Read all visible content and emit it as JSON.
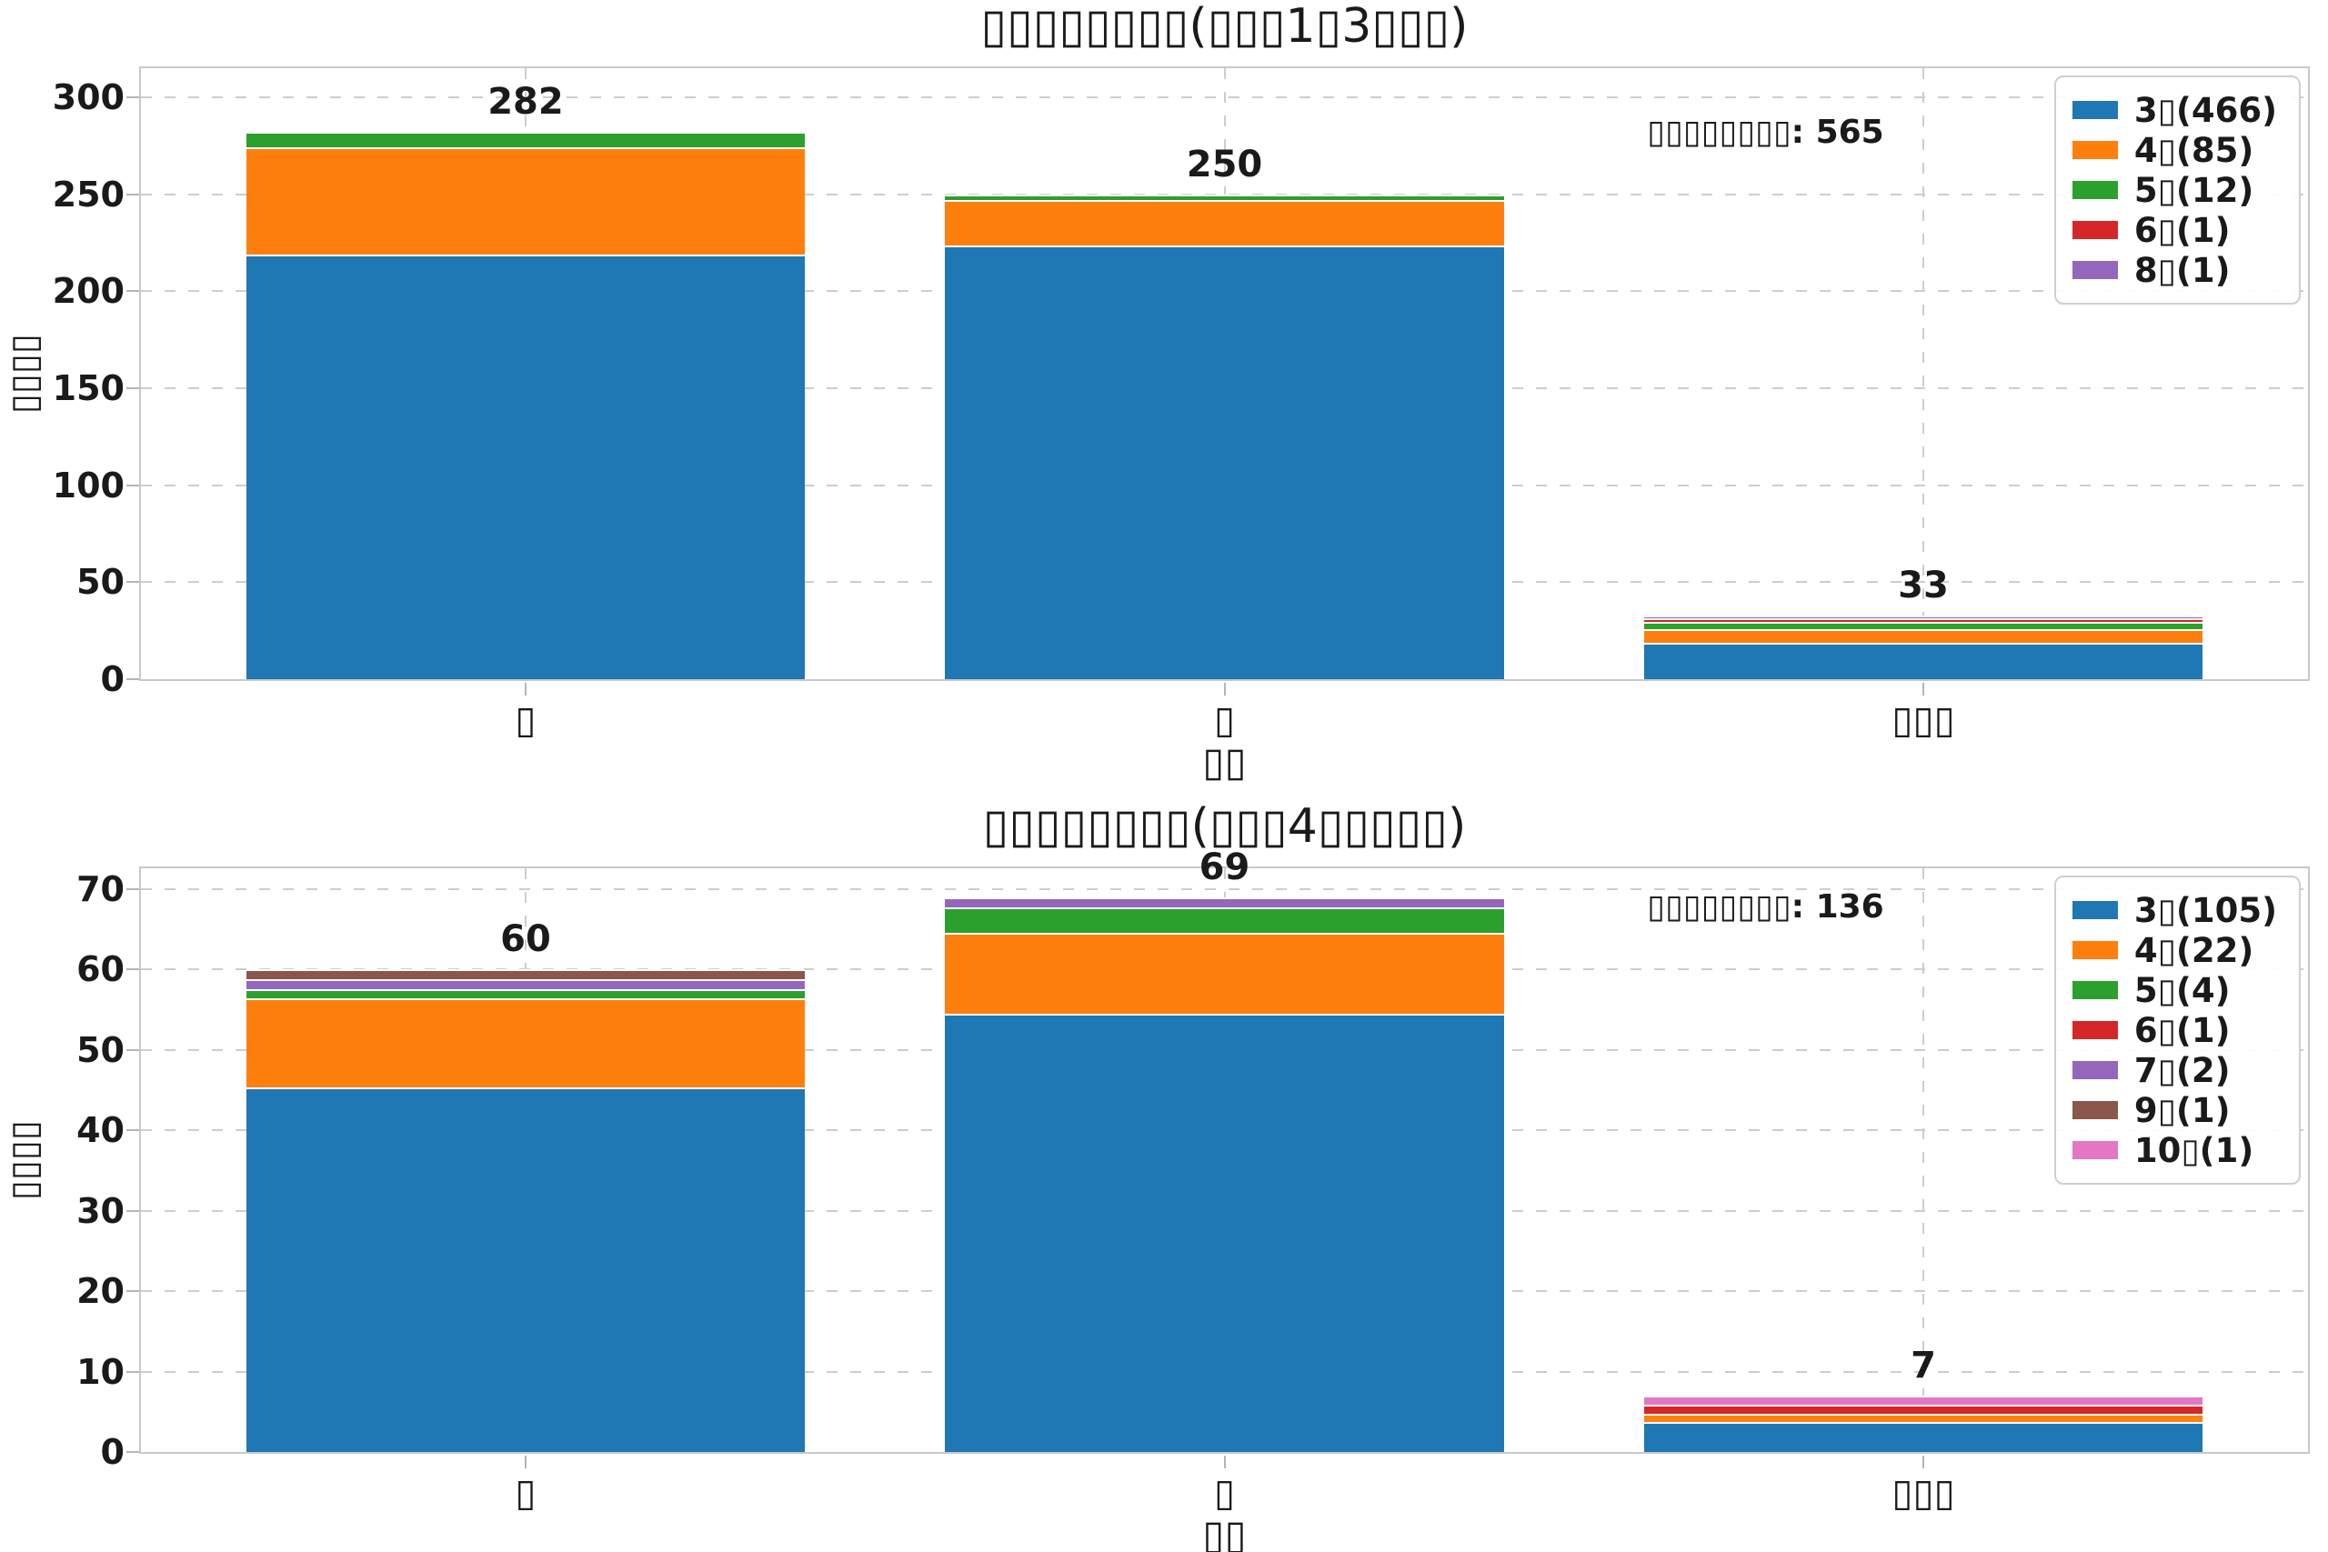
{
  "figure": {
    "background": "#ffffff",
    "grid_color": "#cdcdcd",
    "spine_color": "#c9c9c9",
    "text_color": "#1a1a1a"
  },
  "chart_data": [
    {
      "type": "bar",
      "stacked": true,
      "title": "▯▯▯▯▯▯▯▯(▯▯▯1▯3▯▯▯)",
      "xlabel": "▯▯",
      "ylabel": "▯▯▯▯",
      "annotation": "▯▯▯▯▯▯▯▯: 565",
      "categories": [
        "▯",
        "▯",
        "▯▯▯"
      ],
      "totals": [
        282,
        250,
        33
      ],
      "yticks": [
        0,
        50,
        100,
        150,
        200,
        250,
        300
      ],
      "ylim": [
        0,
        315
      ],
      "grid": true,
      "legend_position": "upper right",
      "series": [
        {
          "name": "3▯(466)",
          "color": "#1f77b4",
          "values": [
            220,
            225,
            21
          ]
        },
        {
          "name": "4▯(85)",
          "color": "#ff7f0e",
          "values": [
            55,
            23,
            7
          ]
        },
        {
          "name": "5▯(12)",
          "color": "#2ca02c",
          "values": [
            7,
            2,
            3
          ]
        },
        {
          "name": "6▯(1)",
          "color": "#d62728",
          "values": [
            0,
            0,
            1
          ]
        },
        {
          "name": "8▯(1)",
          "color": "#9467bd",
          "values": [
            0,
            0,
            1
          ]
        }
      ]
    },
    {
      "type": "bar",
      "stacked": true,
      "title": "▯▯▯▯▯▯▯▯(▯▯▯4▯▯▯▯▯)",
      "xlabel": "▯▯",
      "ylabel": "▯▯▯▯",
      "annotation": "▯▯▯▯▯▯▯▯: 136",
      "categories": [
        "▯",
        "▯",
        "▯▯▯"
      ],
      "totals": [
        60,
        69,
        7
      ],
      "yticks": [
        0,
        10,
        20,
        30,
        40,
        50,
        60,
        70
      ],
      "ylim": [
        0,
        72.6
      ],
      "grid": true,
      "legend_position": "upper right",
      "series": [
        {
          "name": "3▯(105)",
          "color": "#1f77b4",
          "values": [
            46,
            55,
            4
          ]
        },
        {
          "name": "4▯(22)",
          "color": "#ff7f0e",
          "values": [
            11,
            10,
            1
          ]
        },
        {
          "name": "5▯(4)",
          "color": "#2ca02c",
          "values": [
            1,
            3,
            0
          ]
        },
        {
          "name": "6▯(1)",
          "color": "#d62728",
          "values": [
            0,
            0,
            1
          ]
        },
        {
          "name": "7▯(2)",
          "color": "#9467bd",
          "values": [
            1,
            1,
            0
          ]
        },
        {
          "name": "9▯(1)",
          "color": "#8c564b",
          "values": [
            1,
            0,
            0
          ]
        },
        {
          "name": "10▯(1)",
          "color": "#e377c2",
          "values": [
            0,
            0,
            1
          ]
        }
      ]
    }
  ]
}
